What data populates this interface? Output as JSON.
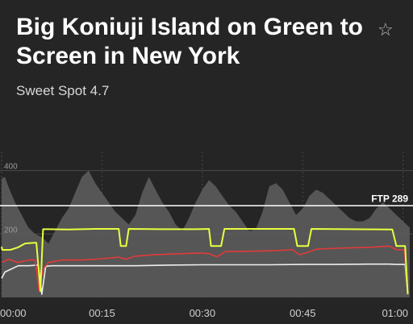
{
  "header": {
    "title": "Big Koniuji Island on Green to Screen in New York",
    "subtitle": "Sweet Spot 4.7",
    "favorite_icon": "star-outline-icon"
  },
  "chart_data": {
    "type": "line",
    "x_ticks": [
      "00:00",
      "00:15",
      "00:30",
      "00:45",
      "01:00"
    ],
    "y_ticks": [
      200,
      400
    ],
    "ftp_label": "FTP 289",
    "ftp_value": 289,
    "x_range_minutes": [
      0,
      61
    ],
    "y_range_watts": [
      0,
      460
    ],
    "colors": {
      "elevation": "#5c5c5c",
      "target_power": "#e8ff40",
      "power": "#e23a3a",
      "heart_rate": "#eeeeee",
      "ftp_line": "#ffffff",
      "grid": "#4a4a4a"
    },
    "series": [
      {
        "key": "target_power",
        "x": [
          0,
          0.1,
          1.3,
          2.5,
          3.5,
          4.8,
          5.2,
          5.8,
          6.2,
          7,
          10,
          14,
          17.5,
          17.8,
          18.6,
          19,
          24,
          29,
          31,
          31.3,
          32.8,
          33.3,
          38,
          43.7,
          44.2,
          45.8,
          46.3,
          52,
          58.4,
          59,
          60.3,
          60.7
        ],
        "y": [
          160,
          150,
          150,
          158,
          170,
          172,
          172,
          20,
          215,
          215,
          214,
          216,
          216,
          162,
          162,
          216,
          215,
          215,
          216,
          162,
          162,
          216,
          216,
          216,
          162,
          162,
          216,
          215,
          214,
          162,
          162,
          10
        ]
      },
      {
        "key": "power",
        "x": [
          0,
          1,
          2.5,
          4,
          5,
          5.6,
          5.9,
          6.3,
          7,
          9,
          12,
          15,
          16.5,
          17.5,
          18.5,
          20,
          23,
          27,
          29.5,
          31,
          32.2,
          33.5,
          36,
          40,
          43.5,
          44.5,
          45.5,
          47,
          50,
          55,
          58,
          59,
          60.2,
          60.7
        ],
        "y": [
          110,
          120,
          110,
          118,
          118,
          20,
          60,
          92,
          110,
          118,
          118,
          122,
          125,
          127,
          120,
          130,
          135,
          138,
          140,
          138,
          128,
          145,
          145,
          147,
          150,
          135,
          140,
          152,
          155,
          158,
          162,
          150,
          150,
          12
        ]
      },
      {
        "key": "heart_rate",
        "x": [
          0,
          0.5,
          1.5,
          2.5,
          4,
          5.5,
          6,
          6.6,
          7.5,
          10,
          15,
          20,
          25,
          30,
          35,
          40,
          45,
          50,
          55,
          58,
          59,
          60.3,
          60.7
        ],
        "y": [
          60,
          80,
          90,
          100,
          100,
          102,
          10,
          98,
          100,
          100,
          100,
          100,
          102,
          103,
          103,
          103,
          104,
          104,
          105,
          105,
          104,
          104,
          10
        ]
      },
      {
        "key": "elevation",
        "x": [
          0,
          0.5,
          1,
          2,
          3,
          4,
          5,
          6,
          7,
          8,
          9,
          10,
          11,
          12,
          13,
          14,
          15,
          16,
          17,
          18,
          19,
          20,
          21,
          22,
          23,
          24,
          25,
          26,
          27,
          28,
          29,
          30,
          31,
          32,
          33,
          34,
          35,
          36,
          37,
          38,
          39,
          40,
          41,
          42,
          43,
          44,
          45,
          46,
          47,
          48,
          49,
          50,
          51,
          52,
          53,
          54,
          55,
          56,
          57,
          58,
          59,
          60,
          61
        ],
        "y": [
          375,
          380,
          350,
          300,
          260,
          220,
          200,
          190,
          170,
          210,
          250,
          280,
          330,
          380,
          400,
          360,
          330,
          300,
          270,
          250,
          230,
          260,
          330,
          380,
          340,
          300,
          270,
          230,
          210,
          250,
          300,
          340,
          370,
          350,
          320,
          290,
          270,
          240,
          210,
          215,
          270,
          350,
          360,
          340,
          300,
          260,
          280,
          320,
          340,
          330,
          310,
          290,
          270,
          250,
          240,
          240,
          250,
          280,
          300,
          280,
          260,
          240,
          220
        ]
      }
    ]
  }
}
